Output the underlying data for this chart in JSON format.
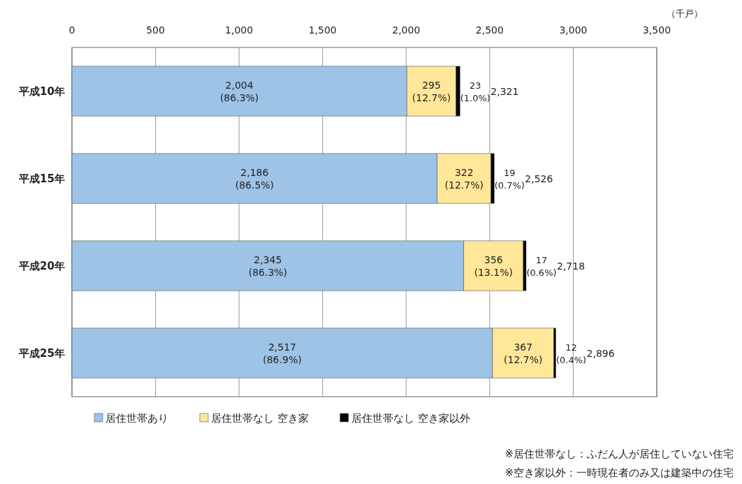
{
  "chart_data": {
    "type": "bar",
    "orientation": "horizontal",
    "stacked": true,
    "xlabel": "（千戸）",
    "categories": [
      "平成10年",
      "平成15年",
      "平成20年",
      "平成25年"
    ],
    "series": [
      {
        "name": "居住世帯あり",
        "color": "#9dc3e6",
        "values": [
          2004,
          2186,
          2345,
          2517
        ],
        "value_labels": [
          "2,004\n(86.3%)",
          "2,186\n(86.5%)",
          "2,345\n(86.3%)",
          "2,517\n(86.9%)"
        ]
      },
      {
        "name": "居住世帯なし 空き家",
        "color": "#ffe699",
        "values": [
          295,
          322,
          356,
          367
        ],
        "value_labels": [
          "295\n(12.7%)",
          "322\n(12.7%)",
          "356\n(13.1%)",
          "367\n(12.7%)"
        ]
      },
      {
        "name": "居住世帯なし 空き家以外",
        "color": "#000000",
        "values": [
          23,
          19,
          17,
          12
        ],
        "value_labels": [
          "23\n(1.0%)",
          "19\n(0.7%)",
          "17\n(0.6%)",
          "12\n(0.4%)"
        ]
      }
    ],
    "totals": [
      "2,321",
      "2,526",
      "2,718",
      "2,896"
    ],
    "xlim": [
      0,
      3500
    ],
    "xticks": [
      0,
      500,
      {
        "value": 1000,
        "label": "1,000"
      },
      {
        "value": 1500,
        "label": "1,500"
      },
      {
        "value": 2000,
        "label": "2,000"
      },
      {
        "value": 2500,
        "label": "2,500"
      },
      {
        "value": 3000,
        "label": "3,000"
      },
      {
        "value": 3500,
        "label": "3,500"
      }
    ],
    "grid": "x",
    "legend": "bottom",
    "annotations": [
      "※居住世帯なし：ふだん人が居住していない住宅",
      "※空き家以外：一時現在者のみ又は建築中の住宅"
    ]
  }
}
